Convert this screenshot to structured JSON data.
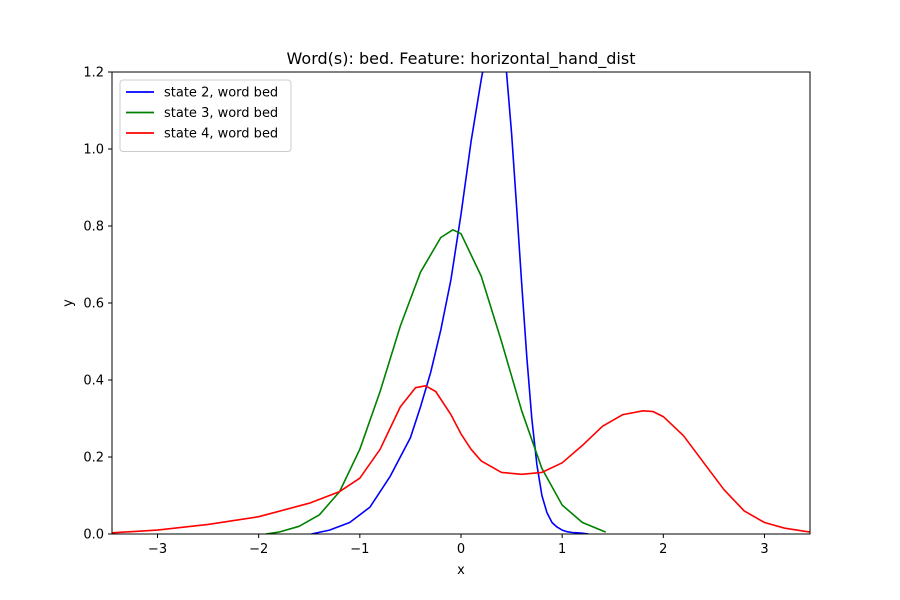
{
  "chart_data": {
    "type": "line",
    "title": "Word(s): bed. Feature: horizontal_hand_dist",
    "xlabel": "x",
    "ylabel": "y",
    "xlim": [
      -3.45,
      3.45
    ],
    "ylim": [
      0,
      1.2
    ],
    "xticks": [
      -3,
      -2,
      -1,
      0,
      1,
      2,
      3
    ],
    "xtick_labels": [
      "−3",
      "−2",
      "−1",
      "0",
      "1",
      "2",
      "3"
    ],
    "yticks": [
      0.0,
      0.2,
      0.4,
      0.6,
      0.8,
      1.0,
      1.2
    ],
    "ytick_labels": [
      "0.0",
      "0.2",
      "0.4",
      "0.6",
      "0.8",
      "1.0",
      "1.2"
    ],
    "grid": false,
    "legend_position": "upper-left",
    "series": [
      {
        "name": "state 2, word bed",
        "color": "#0000ff",
        "x": [
          -1.48,
          -1.3,
          -1.1,
          -0.9,
          -0.7,
          -0.5,
          -0.4,
          -0.3,
          -0.2,
          -0.1,
          0.0,
          0.1,
          0.2,
          0.25,
          0.3,
          0.35,
          0.4,
          0.45,
          0.5,
          0.55,
          0.6,
          0.65,
          0.7,
          0.75,
          0.8,
          0.85,
          0.9,
          0.95,
          1.0,
          1.05,
          1.1,
          1.15,
          1.2,
          1.26
        ],
        "y": [
          0.0,
          0.01,
          0.03,
          0.07,
          0.15,
          0.25,
          0.33,
          0.42,
          0.53,
          0.66,
          0.83,
          1.02,
          1.18,
          1.25,
          1.3,
          1.32,
          1.3,
          1.2,
          1.04,
          0.85,
          0.65,
          0.46,
          0.3,
          0.18,
          0.1,
          0.055,
          0.03,
          0.018,
          0.01,
          0.006,
          0.004,
          0.003,
          0.002,
          0.0
        ]
      },
      {
        "name": "state 3, word bed",
        "color": "#008000",
        "x": [
          -1.93,
          -1.8,
          -1.6,
          -1.4,
          -1.2,
          -1.0,
          -0.8,
          -0.6,
          -0.4,
          -0.2,
          -0.08,
          0.0,
          0.2,
          0.4,
          0.6,
          0.8,
          1.0,
          1.2,
          1.43
        ],
        "y": [
          0.0,
          0.005,
          0.02,
          0.05,
          0.11,
          0.22,
          0.37,
          0.54,
          0.68,
          0.77,
          0.79,
          0.78,
          0.67,
          0.5,
          0.32,
          0.17,
          0.075,
          0.03,
          0.005
        ]
      },
      {
        "name": "state 4, word bed",
        "color": "#ff0000",
        "x": [
          -3.45,
          -3.0,
          -2.5,
          -2.0,
          -1.5,
          -1.2,
          -1.0,
          -0.8,
          -0.6,
          -0.45,
          -0.35,
          -0.25,
          -0.1,
          0.0,
          0.1,
          0.2,
          0.4,
          0.6,
          0.8,
          1.0,
          1.2,
          1.4,
          1.6,
          1.8,
          1.9,
          2.0,
          2.2,
          2.4,
          2.6,
          2.8,
          3.0,
          3.2,
          3.45
        ],
        "y": [
          0.003,
          0.01,
          0.025,
          0.045,
          0.08,
          0.11,
          0.145,
          0.22,
          0.33,
          0.38,
          0.385,
          0.37,
          0.31,
          0.26,
          0.22,
          0.19,
          0.16,
          0.155,
          0.16,
          0.185,
          0.23,
          0.28,
          0.31,
          0.32,
          0.318,
          0.305,
          0.255,
          0.185,
          0.115,
          0.06,
          0.03,
          0.015,
          0.005
        ]
      }
    ]
  }
}
